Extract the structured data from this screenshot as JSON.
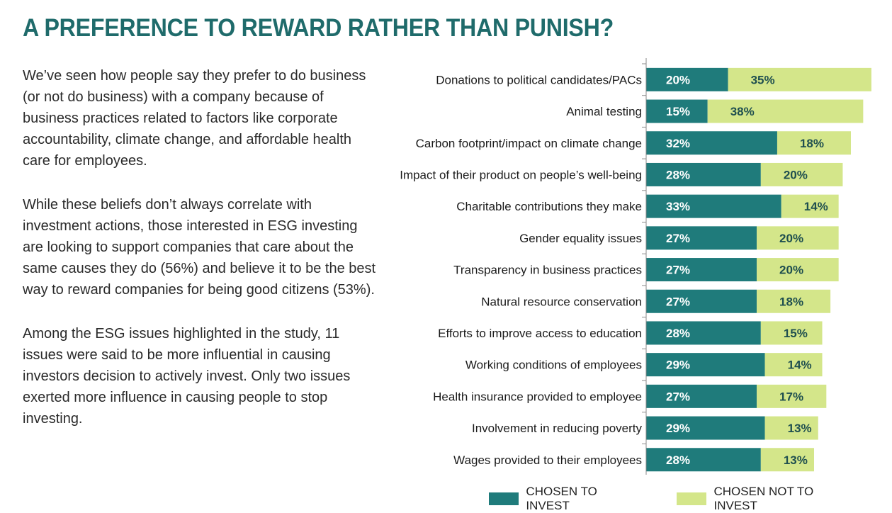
{
  "title": "A PREFERENCE TO REWARD RATHER THAN PUNISH?",
  "paragraphs": [
    "We’ve seen how people say they prefer to do business (or not do business) with a company because of business practices related to factors like corporate accountability, climate change, and affordable health care for employees.",
    "While these beliefs don’t always correlate with investment actions, those interested in ESG investing are looking to support companies that care about the same causes they do (56%) and believe it to be the best way to reward companies for being good citizens (53%).",
    "Among the ESG issues highlighted in the study, 11 issues were said to be more influential in causing investors decision to actively invest. Only two issues exerted more influence in causing people to stop investing."
  ],
  "colors": {
    "invest": "#1f7b7b",
    "not_invest": "#d4e68a",
    "title": "#1f6b6b"
  },
  "chart_data": {
    "type": "bar",
    "orientation": "horizontal",
    "stacked": true,
    "categories": [
      "Donations to political candidates/PACs",
      "Animal testing",
      "Carbon footprint/impact on climate change",
      "Impact of their product on people’s well-being",
      "Charitable contributions they make",
      "Gender equality issues",
      "Transparency in business practices",
      "Natural resource conservation",
      "Efforts to improve access to education",
      "Working conditions of employees",
      "Health insurance provided to employee",
      "Involvement in reducing poverty",
      "Wages provided to their employees"
    ],
    "series": [
      {
        "name": "CHOSEN TO INVEST",
        "values": [
          20,
          15,
          32,
          28,
          33,
          27,
          27,
          27,
          28,
          29,
          27,
          29,
          28
        ]
      },
      {
        "name": "CHOSEN NOT TO INVEST",
        "values": [
          35,
          38,
          18,
          20,
          14,
          20,
          20,
          18,
          15,
          14,
          17,
          13,
          13
        ]
      }
    ],
    "value_suffix": "%",
    "legend": "bottom",
    "grid": false
  }
}
